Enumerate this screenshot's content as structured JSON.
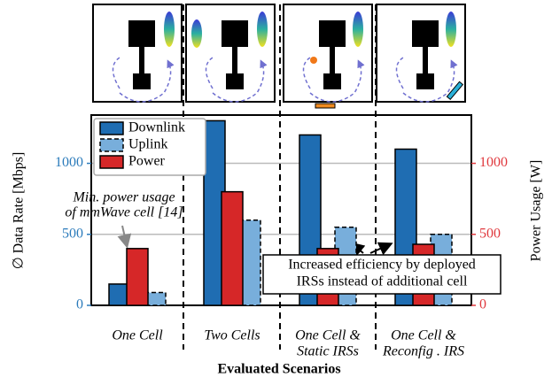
{
  "chart_data": {
    "type": "bar",
    "categories": [
      [
        "One Cell"
      ],
      [
        "Two Cells"
      ],
      [
        "One Cell &",
        "Static IRSs"
      ],
      [
        "One Cell &",
        "Reconfig . IRS"
      ]
    ],
    "series": [
      {
        "name": "Downlink",
        "color": "#1f6db2",
        "values": [
          150,
          1300,
          1200,
          1100
        ]
      },
      {
        "name": "Uplink",
        "color": "#78aedb",
        "values": [
          90,
          600,
          550,
          500
        ]
      },
      {
        "name": "Power",
        "color": "#d62728",
        "axis": "y2",
        "values": [
          400,
          800,
          400,
          430
        ]
      }
    ],
    "ylabel": "∅ Data Rate [Mbps]",
    "y2label": "Power Usage [W]",
    "xlabel": "Evaluated Scenarios",
    "ylim": [
      0,
      1340
    ],
    "yticks": [
      0,
      500,
      1000
    ],
    "y2lim": [
      0,
      1340
    ],
    "y2ticks": [
      0,
      500,
      1000
    ],
    "ycolor": "#2b7bbb",
    "y2color": "#e0393e",
    "grid": true,
    "annotations": [
      {
        "lines": [
          "Min. power usage",
          "of mmWave cell [14]"
        ]
      },
      {
        "lines": [
          "Increased efficiency by deployed",
          "IRSs instead of additional cell"
        ]
      }
    ]
  }
}
